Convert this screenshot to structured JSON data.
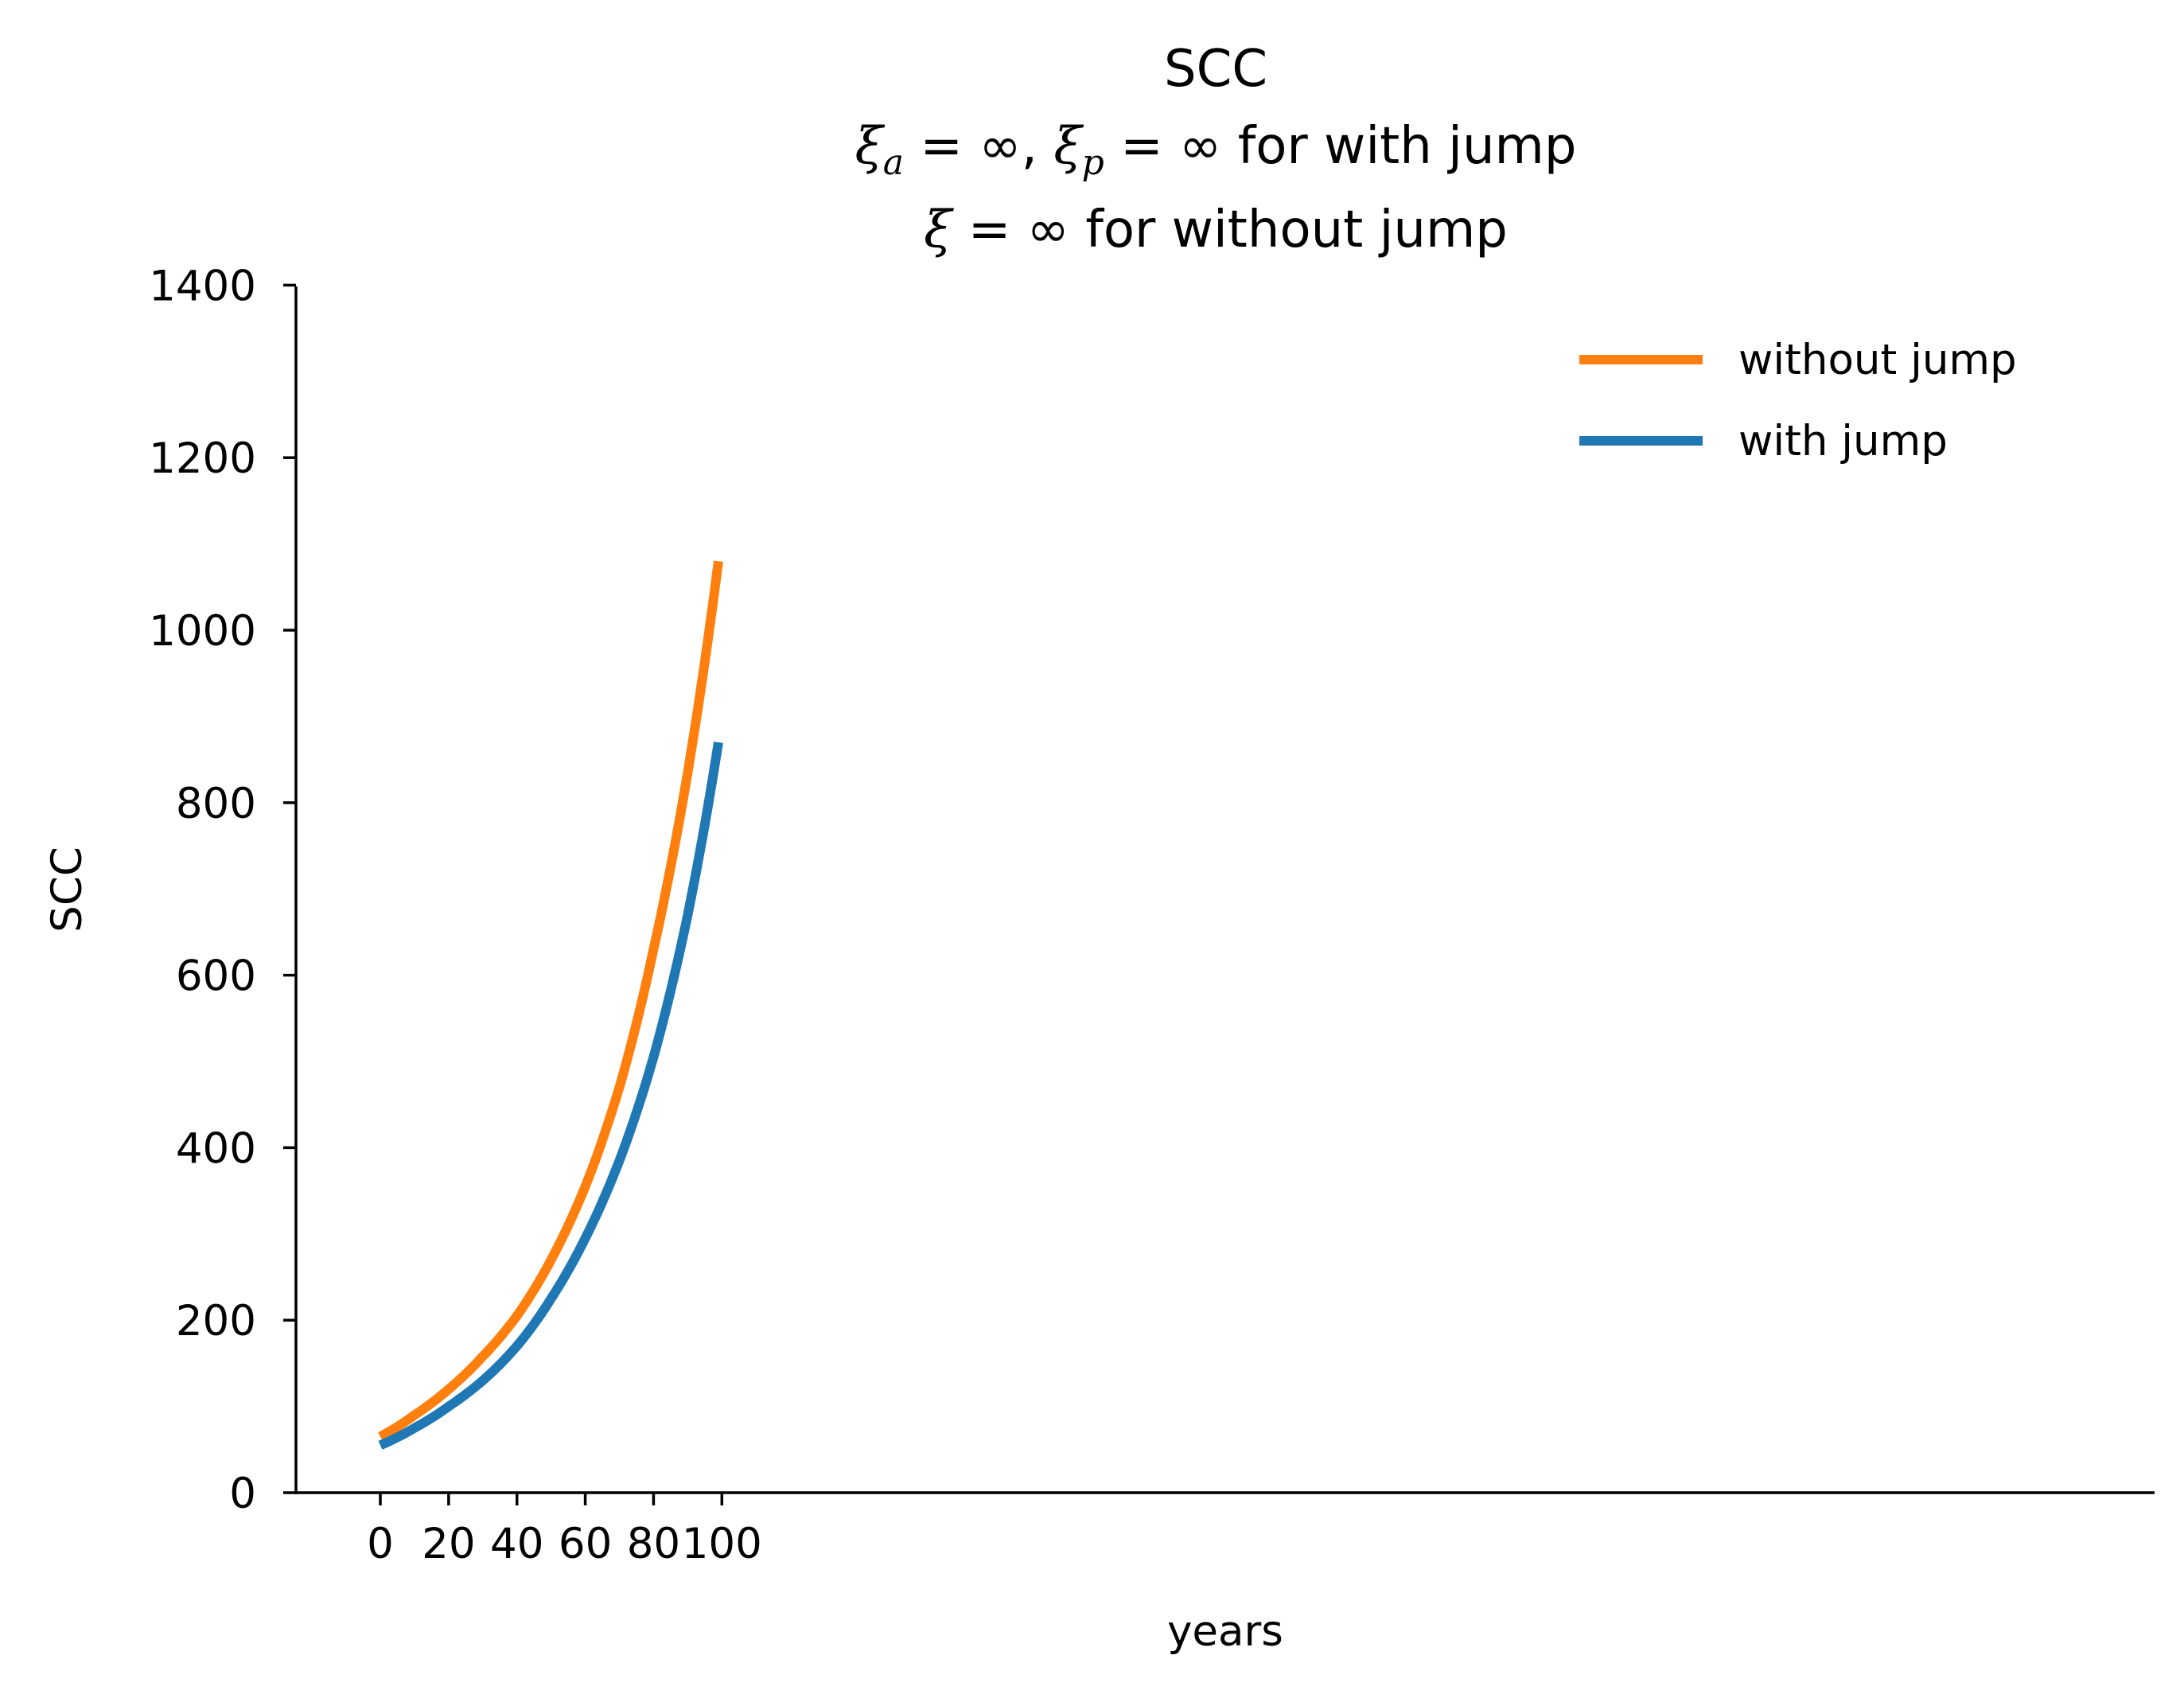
{
  "chart_data": {
    "type": "line",
    "title_lines": [
      "SCC",
      "ξa = ∞, ξp = ∞ for with jump",
      "ξ = ∞ for without jump"
    ],
    "title": {
      "line1": "SCC",
      "line2_sym_a": "ξ",
      "line2_sub_a": "a",
      "line2_mid": " = ∞, ",
      "line2_sym_p": "ξ",
      "line2_sub_p": "p",
      "line2_rest": " = ∞ for with jump",
      "line3_sym": "ξ",
      "line3_rest": " = ∞ for without jump"
    },
    "xlabel": "years",
    "ylabel": "SCC",
    "xlim": [
      -5,
      104
    ],
    "ylim": [
      0,
      1400
    ],
    "xticks": [
      0,
      20,
      40,
      60,
      80,
      100
    ],
    "yticks": [
      0,
      200,
      400,
      600,
      800,
      1000,
      1200,
      1400
    ],
    "grid": false,
    "legend_position": "top-right",
    "x": [
      0,
      10,
      20,
      30,
      40,
      50,
      60,
      70,
      80,
      90,
      99
    ],
    "series": [
      {
        "name": "without jump",
        "color": "#ff7f0e",
        "values": [
          65,
          90,
          120,
          158,
          205,
          270,
          355,
          470,
          630,
          835,
          1080
        ]
      },
      {
        "name": "with jump",
        "color": "#1f77b4",
        "values": [
          55,
          75,
          100,
          130,
          170,
          225,
          295,
          385,
          505,
          670,
          870
        ]
      }
    ]
  }
}
